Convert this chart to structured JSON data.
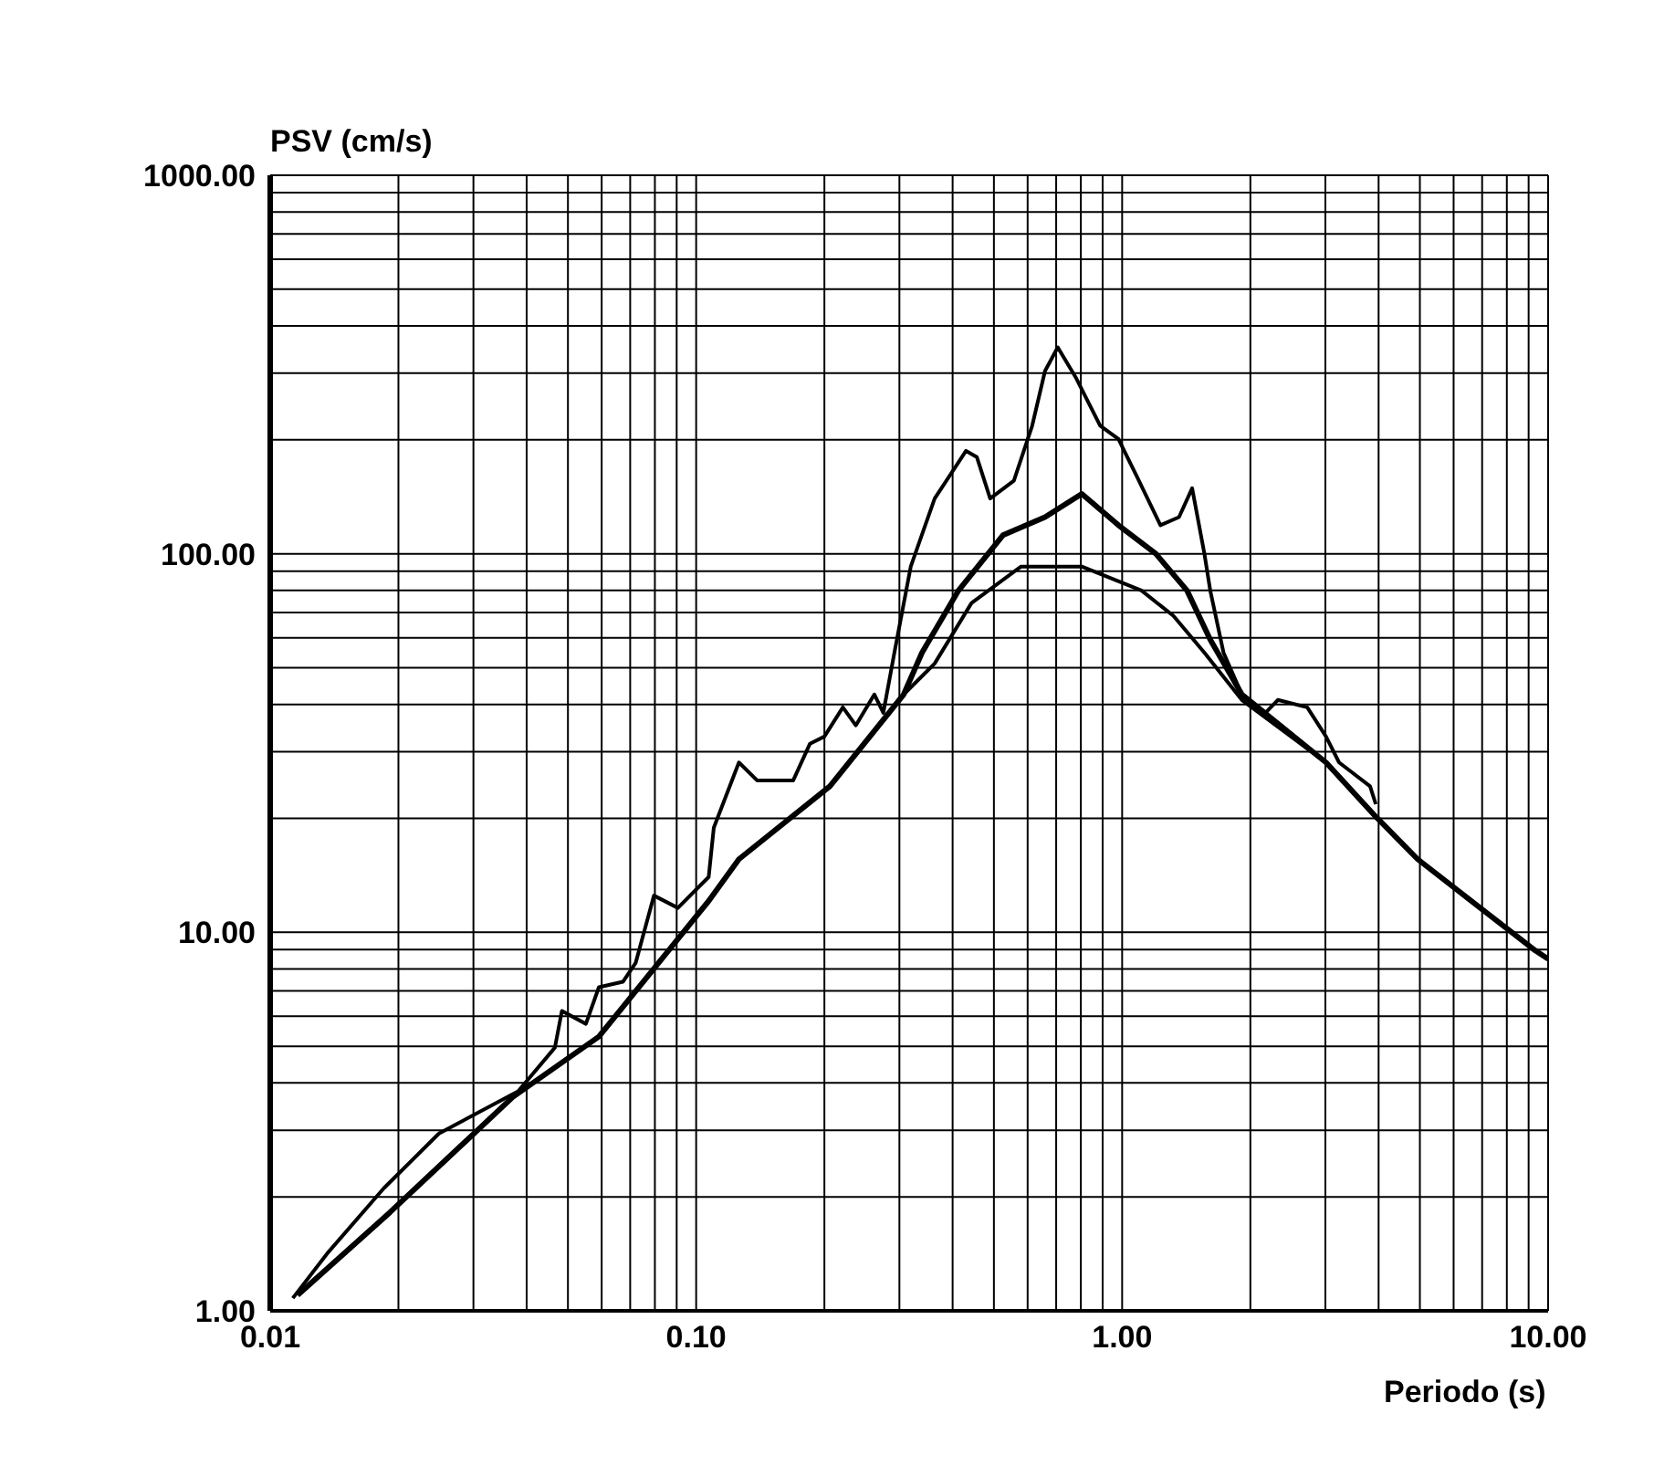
{
  "chart_data": {
    "type": "line",
    "xlabel": "Periodo (s)",
    "ylabel": "PSV (cm/s)",
    "log": "xy",
    "grid": true,
    "marker": "none",
    "line_style": "solid",
    "xlim": [
      0.01,
      10
    ],
    "ylim": [
      1,
      1000
    ],
    "xticks": [
      {
        "value": 0.01,
        "label": "0.01"
      },
      {
        "value": 0.02,
        "label": null
      },
      {
        "value": 0.03,
        "label": null
      },
      {
        "value": 0.04,
        "label": null
      },
      {
        "value": 0.05,
        "label": null
      },
      {
        "value": 0.06,
        "label": null
      },
      {
        "value": 0.07,
        "label": null
      },
      {
        "value": 0.08,
        "label": null
      },
      {
        "value": 0.09,
        "label": null
      },
      {
        "value": 0.1,
        "label": "0.10"
      },
      {
        "value": 0.2,
        "label": null
      },
      {
        "value": 0.3,
        "label": null
      },
      {
        "value": 0.4,
        "label": null
      },
      {
        "value": 0.5,
        "label": null
      },
      {
        "value": 0.6,
        "label": null
      },
      {
        "value": 0.7,
        "label": null
      },
      {
        "value": 0.8,
        "label": null
      },
      {
        "value": 0.9,
        "label": null
      },
      {
        "value": 1,
        "label": "1.00"
      },
      {
        "value": 2,
        "label": null
      },
      {
        "value": 3,
        "label": null
      },
      {
        "value": 4,
        "label": null
      },
      {
        "value": 5,
        "label": null
      },
      {
        "value": 6,
        "label": null
      },
      {
        "value": 7,
        "label": null
      },
      {
        "value": 8,
        "label": null
      },
      {
        "value": 9,
        "label": null
      },
      {
        "value": 10,
        "label": "10.00"
      }
    ],
    "yticks": [
      {
        "value": 1,
        "label": "1.00"
      },
      {
        "value": 2,
        "label": null
      },
      {
        "value": 3,
        "label": null
      },
      {
        "value": 4,
        "label": null
      },
      {
        "value": 5,
        "label": null
      },
      {
        "value": 6,
        "label": null
      },
      {
        "value": 7,
        "label": null
      },
      {
        "value": 8,
        "label": null
      },
      {
        "value": 9,
        "label": null
      },
      {
        "value": 10,
        "label": "10.00"
      },
      {
        "value": 20,
        "label": null
      },
      {
        "value": 30,
        "label": null
      },
      {
        "value": 40,
        "label": null
      },
      {
        "value": 50,
        "label": null
      },
      {
        "value": 60,
        "label": null
      },
      {
        "value": 70,
        "label": null
      },
      {
        "value": 80,
        "label": null
      },
      {
        "value": 90,
        "label": null
      },
      {
        "value": 100,
        "label": "100.00"
      },
      {
        "value": 200,
        "label": null
      },
      {
        "value": 300,
        "label": null
      },
      {
        "value": 400,
        "label": null
      },
      {
        "value": 500,
        "label": null
      },
      {
        "value": 600,
        "label": null
      },
      {
        "value": 700,
        "label": null
      },
      {
        "value": 800,
        "label": null
      },
      {
        "value": 900,
        "label": null
      },
      {
        "value": 1000,
        "label": "1000.00"
      }
    ],
    "series": [
      {
        "color": "#000000",
        "x": [
          0.0113,
          0.0137,
          0.0185,
          0.0249,
          0.0382,
          0.0466,
          0.0484,
          0.0551,
          0.0591,
          0.0673,
          0.0721,
          0.0796,
          0.0906,
          0.107,
          0.11,
          0.126,
          0.139,
          0.169,
          0.185,
          0.2,
          0.221,
          0.237,
          0.262,
          0.275,
          0.292,
          0.319,
          0.363,
          0.43,
          0.456,
          0.49,
          0.557,
          0.615,
          0.659,
          0.706,
          0.78,
          0.888,
          0.98,
          1.08,
          1.23,
          1.36,
          1.46,
          1.56,
          1.61,
          1.73,
          1.91,
          2.17,
          2.32,
          2.72,
          3.01,
          3.23,
          3.82,
          3.94
        ],
        "values": [
          1.08,
          1.43,
          2.11,
          2.94,
          3.8,
          4.96,
          6.2,
          5.73,
          7.16,
          7.4,
          8.3,
          12.5,
          11.6,
          14,
          18.9,
          28.1,
          25.2,
          25.2,
          31.5,
          32.9,
          39.3,
          35.2,
          42.5,
          38,
          54.8,
          92.5,
          140,
          187,
          180,
          140,
          156,
          218,
          304,
          351,
          291,
          218,
          201,
          161,
          119,
          125,
          149,
          100,
          80,
          54.8,
          42.5,
          38,
          41.1,
          39.3,
          32.9,
          28.1,
          24.3,
          21.8
        ]
      },
      {
        "color": "#000000",
        "x": [
          0.0116,
          0.0191,
          0.0371,
          0.0591,
          0.107,
          0.126,
          0.206,
          0.307,
          0.339,
          0.413,
          0.525,
          0.659,
          0.804,
          0.98,
          1.2,
          1.42,
          1.61,
          1.91,
          3.01,
          3.94,
          4.94,
          6.93,
          9.33,
          10
        ],
        "values": [
          1.1,
          1.82,
          3.67,
          5.3,
          12.1,
          15.6,
          24.3,
          42.5,
          54.8,
          80,
          112,
          125,
          144,
          119,
          100,
          80,
          59.3,
          42.5,
          28.1,
          20.2,
          15.6,
          11.6,
          8.95,
          8.5
        ]
      },
      {
        "color": "#000000",
        "x": [
          0.0116,
          0.0191,
          0.0371,
          0.0591,
          0.107,
          0.126,
          0.206,
          0.307,
          0.363,
          0.443,
          0.579,
          0.804,
          1.11,
          1.32,
          1.56,
          1.91,
          3.01,
          3.94,
          4.94,
          6.93,
          9.33,
          10
        ],
        "values": [
          1.1,
          1.82,
          3.67,
          5.3,
          12.1,
          15.6,
          24.3,
          42.5,
          51.3,
          74.1,
          92.5,
          92.5,
          80,
          68.5,
          54.8,
          41.1,
          28.1,
          20.2,
          15.6,
          11.6,
          8.95,
          8.5
        ]
      }
    ]
  }
}
